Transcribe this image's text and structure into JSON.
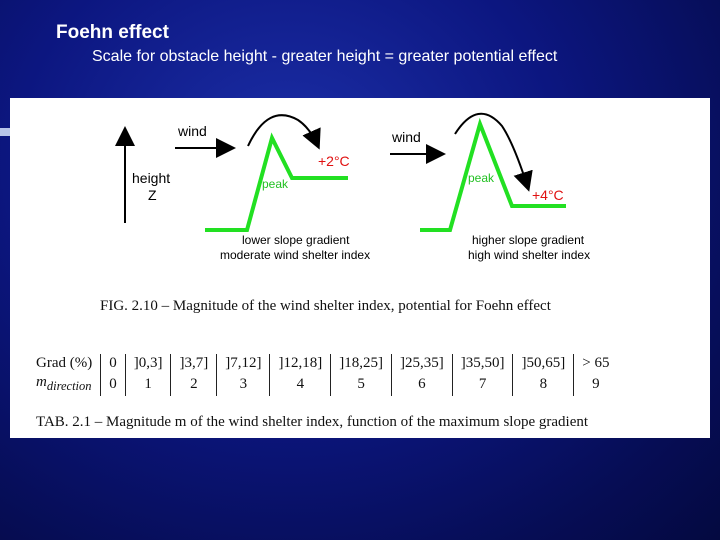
{
  "slide": {
    "title": "Foehn effect",
    "subtitle": "Scale for obstacle height - greater height = greater potential effect"
  },
  "diagram": {
    "axis_label_height": "height",
    "axis_label_z": "Z",
    "left": {
      "wind_label": "wind",
      "peak_label": "peak",
      "temp_label": "+2°C",
      "gradient_label": "lower slope gradient",
      "index_label": "moderate wind shelter index"
    },
    "right": {
      "wind_label": "wind",
      "peak_label": "peak",
      "temp_label": "+4°C",
      "gradient_label": "higher slope gradient",
      "index_label": "high wind shelter index"
    },
    "colors": {
      "terrain": "#22e022",
      "temperature": "#e01010",
      "arrow": "#000000"
    },
    "figure_caption": "FIG. 2.10 – Magnitude of the wind shelter index, potential for Foehn effect"
  },
  "table": {
    "row1_header": "Grad (%)",
    "row1": [
      "0",
      "]0,3]",
      "]3,7]",
      "]7,12]",
      "]12,18]",
      "]18,25]",
      "]25,35]",
      "]35,50]",
      "]50,65]",
      "> 65"
    ],
    "row2_header_main": "m",
    "row2_header_sub": "direction",
    "row2": [
      "0",
      "1",
      "2",
      "3",
      "4",
      "5",
      "6",
      "7",
      "8",
      "9"
    ],
    "caption": "TAB. 2.1 – Magnitude m of the wind shelter index, function of the maximum slope gradient"
  }
}
